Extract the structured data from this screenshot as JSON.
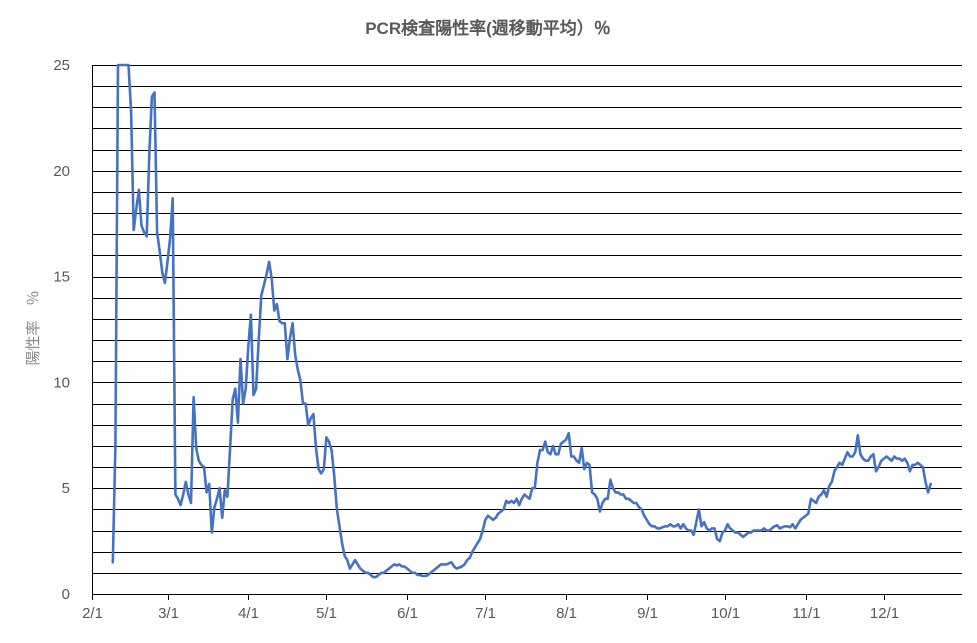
{
  "chart_data": {
    "type": "line",
    "title": "PCR検査陽性率(週移動平均）％",
    "ylabel": "陽性率　％",
    "xlabel": "",
    "ylim": [
      0,
      25
    ],
    "yticks": [
      0,
      5,
      10,
      15,
      20,
      25
    ],
    "ytick_labels": [
      "0",
      "5",
      "10",
      "15",
      "20",
      "25"
    ],
    "y_gridlines_every": 1,
    "grid": true,
    "legend": "none",
    "xlim": [
      "2/1",
      "12/31"
    ],
    "xtick_labels": [
      {
        "label": "2/1",
        "day": 0
      },
      {
        "label": "3/1",
        "day": 29
      },
      {
        "label": "4/1",
        "day": 60
      },
      {
        "label": "5/1",
        "day": 90
      },
      {
        "label": "6/1",
        "day": 121
      },
      {
        "label": "7/1",
        "day": 151
      },
      {
        "label": "8/1",
        "day": 182
      },
      {
        "label": "9/1",
        "day": 213
      },
      {
        "label": "10/1",
        "day": 243
      },
      {
        "label": "11/1",
        "day": 274
      },
      {
        "label": "12/1",
        "day": 304
      }
    ],
    "x_range_days": [
      0,
      334
    ],
    "series": [
      {
        "color": "#4472C4",
        "points": [
          [
            8,
            1.5
          ],
          [
            9,
            7
          ],
          [
            10,
            25
          ],
          [
            11,
            25
          ],
          [
            12,
            25
          ],
          [
            13,
            25
          ],
          [
            14,
            25
          ],
          [
            15,
            22.8
          ],
          [
            16,
            17.2
          ],
          [
            17,
            18.2
          ],
          [
            18,
            19.1
          ],
          [
            19,
            17.4
          ],
          [
            20,
            17.1
          ],
          [
            21,
            16.9
          ],
          [
            22,
            20.8
          ],
          [
            23,
            23.5
          ],
          [
            24,
            23.7
          ],
          [
            25,
            17.1
          ],
          [
            26,
            16.2
          ],
          [
            27,
            15.2
          ],
          [
            28,
            14.7
          ],
          [
            29,
            15.7
          ],
          [
            30,
            16.8
          ],
          [
            31,
            18.7
          ],
          [
            32,
            4.7
          ],
          [
            33,
            4.5
          ],
          [
            34,
            4.2
          ],
          [
            35,
            4.7
          ],
          [
            36,
            5.3
          ],
          [
            37,
            4.7
          ],
          [
            38,
            4.3
          ],
          [
            39,
            9.3
          ],
          [
            40,
            6.9
          ],
          [
            41,
            6.3
          ],
          [
            42,
            6.1
          ],
          [
            43,
            6.0
          ],
          [
            44,
            4.8
          ],
          [
            45,
            5.2
          ],
          [
            46,
            2.9
          ],
          [
            47,
            4.1
          ],
          [
            48,
            4.5
          ],
          [
            49,
            5.0
          ],
          [
            50,
            3.6
          ],
          [
            51,
            4.9
          ],
          [
            52,
            4.6
          ],
          [
            53,
            6.9
          ],
          [
            54,
            9.2
          ],
          [
            55,
            9.7
          ],
          [
            56,
            8.1
          ],
          [
            57,
            11.1
          ],
          [
            58,
            9.0
          ],
          [
            59,
            9.7
          ],
          [
            60,
            11.7
          ],
          [
            61,
            13.2
          ],
          [
            62,
            9.4
          ],
          [
            63,
            9.7
          ],
          [
            64,
            12.0
          ],
          [
            65,
            14.1
          ],
          [
            66,
            14.6
          ],
          [
            67,
            15.1
          ],
          [
            68,
            15.7
          ],
          [
            69,
            14.9
          ],
          [
            70,
            13.4
          ],
          [
            71,
            13.7
          ],
          [
            72,
            12.9
          ],
          [
            73,
            12.8
          ],
          [
            74,
            12.8
          ],
          [
            75,
            11.1
          ],
          [
            76,
            12.1
          ],
          [
            77,
            12.8
          ],
          [
            78,
            11.3
          ],
          [
            79,
            10.6
          ],
          [
            80,
            10.1
          ],
          [
            81,
            9.0
          ],
          [
            82,
            9.0
          ],
          [
            83,
            8.0
          ],
          [
            84,
            8.3
          ],
          [
            85,
            8.5
          ],
          [
            86,
            6.9
          ],
          [
            87,
            5.9
          ],
          [
            88,
            5.7
          ],
          [
            89,
            5.9
          ],
          [
            90,
            7.4
          ],
          [
            91,
            7.2
          ],
          [
            92,
            6.8
          ],
          [
            93,
            5.6
          ],
          [
            94,
            4.0
          ],
          [
            95,
            3.2
          ],
          [
            96,
            2.4
          ],
          [
            97,
            1.8
          ],
          [
            98,
            1.6
          ],
          [
            99,
            1.2
          ],
          [
            100,
            1.4
          ],
          [
            101,
            1.6
          ],
          [
            102,
            1.4
          ],
          [
            103,
            1.2
          ],
          [
            104,
            1.1
          ],
          [
            105,
            1.0
          ],
          [
            106,
            1.0
          ],
          [
            107,
            0.9
          ],
          [
            108,
            0.8
          ],
          [
            109,
            0.8
          ],
          [
            110,
            0.9
          ],
          [
            111,
            1.0
          ],
          [
            112,
            1.0
          ],
          [
            113,
            1.1
          ],
          [
            114,
            1.2
          ],
          [
            115,
            1.3
          ],
          [
            116,
            1.4
          ],
          [
            117,
            1.35
          ],
          [
            118,
            1.4
          ],
          [
            119,
            1.3
          ],
          [
            120,
            1.3
          ],
          [
            121,
            1.2
          ],
          [
            122,
            1.1
          ],
          [
            123,
            1.0
          ],
          [
            124,
            1.0
          ],
          [
            125,
            0.9
          ],
          [
            126,
            0.9
          ],
          [
            127,
            0.85
          ],
          [
            128,
            0.85
          ],
          [
            129,
            0.9
          ],
          [
            130,
            1.0
          ],
          [
            131,
            1.1
          ],
          [
            132,
            1.2
          ],
          [
            133,
            1.3
          ],
          [
            134,
            1.4
          ],
          [
            135,
            1.4
          ],
          [
            136,
            1.4
          ],
          [
            137,
            1.45
          ],
          [
            138,
            1.5
          ],
          [
            139,
            1.3
          ],
          [
            140,
            1.2
          ],
          [
            141,
            1.25
          ],
          [
            142,
            1.3
          ],
          [
            143,
            1.4
          ],
          [
            144,
            1.6
          ],
          [
            145,
            1.7
          ],
          [
            146,
            2.0
          ],
          [
            147,
            2.2
          ],
          [
            148,
            2.4
          ],
          [
            149,
            2.6
          ],
          [
            150,
            3.0
          ],
          [
            151,
            3.5
          ],
          [
            152,
            3.7
          ],
          [
            153,
            3.6
          ],
          [
            154,
            3.5
          ],
          [
            155,
            3.6
          ],
          [
            156,
            3.8
          ],
          [
            157,
            3.9
          ],
          [
            158,
            4.0
          ],
          [
            159,
            4.4
          ],
          [
            160,
            4.3
          ],
          [
            161,
            4.4
          ],
          [
            162,
            4.3
          ],
          [
            163,
            4.5
          ],
          [
            164,
            4.2
          ],
          [
            165,
            4.5
          ],
          [
            166,
            4.7
          ],
          [
            167,
            4.6
          ],
          [
            168,
            4.5
          ],
          [
            169,
            5.0
          ],
          [
            170,
            5.0
          ],
          [
            171,
            6.2
          ],
          [
            172,
            6.8
          ],
          [
            173,
            6.8
          ],
          [
            174,
            7.2
          ],
          [
            175,
            6.7
          ],
          [
            176,
            6.6
          ],
          [
            177,
            7.0
          ],
          [
            178,
            6.6
          ],
          [
            179,
            6.6
          ],
          [
            180,
            7.1
          ],
          [
            181,
            7.2
          ],
          [
            182,
            7.3
          ],
          [
            183,
            7.6
          ],
          [
            184,
            6.5
          ],
          [
            185,
            6.5
          ],
          [
            186,
            6.3
          ],
          [
            187,
            6.2
          ],
          [
            188,
            6.9
          ],
          [
            189,
            5.9
          ],
          [
            190,
            6.2
          ],
          [
            191,
            6.1
          ],
          [
            192,
            4.8
          ],
          [
            193,
            4.7
          ],
          [
            194,
            4.5
          ],
          [
            195,
            3.9
          ],
          [
            196,
            4.3
          ],
          [
            197,
            4.5
          ],
          [
            198,
            4.5
          ],
          [
            199,
            5.4
          ],
          [
            200,
            5.0
          ],
          [
            201,
            4.8
          ],
          [
            202,
            4.8
          ],
          [
            203,
            4.7
          ],
          [
            204,
            4.7
          ],
          [
            205,
            4.5
          ],
          [
            206,
            4.5
          ],
          [
            207,
            4.4
          ],
          [
            208,
            4.3
          ],
          [
            209,
            4.3
          ],
          [
            210,
            4.1
          ],
          [
            211,
            4.0
          ],
          [
            212,
            3.7
          ],
          [
            213,
            3.5
          ],
          [
            214,
            3.3
          ],
          [
            215,
            3.2
          ],
          [
            216,
            3.2
          ],
          [
            217,
            3.1
          ],
          [
            218,
            3.1
          ],
          [
            219,
            3.15
          ],
          [
            220,
            3.2
          ],
          [
            221,
            3.2
          ],
          [
            222,
            3.3
          ],
          [
            223,
            3.2
          ],
          [
            224,
            3.2
          ],
          [
            225,
            3.3
          ],
          [
            226,
            3.1
          ],
          [
            227,
            3.3
          ],
          [
            228,
            3.1
          ],
          [
            229,
            3.0
          ],
          [
            230,
            3.0
          ],
          [
            231,
            2.8
          ],
          [
            232,
            3.4
          ],
          [
            233,
            4.0
          ],
          [
            234,
            3.2
          ],
          [
            235,
            3.4
          ],
          [
            236,
            3.1
          ],
          [
            237,
            3.0
          ],
          [
            238,
            3.1
          ],
          [
            239,
            3.1
          ],
          [
            240,
            2.6
          ],
          [
            241,
            2.5
          ],
          [
            242,
            2.9
          ],
          [
            243,
            3.0
          ],
          [
            244,
            3.3
          ],
          [
            245,
            3.1
          ],
          [
            246,
            3.0
          ],
          [
            247,
            2.9
          ],
          [
            248,
            2.9
          ],
          [
            249,
            2.8
          ],
          [
            250,
            2.7
          ],
          [
            251,
            2.8
          ],
          [
            252,
            2.9
          ],
          [
            253,
            2.9
          ],
          [
            254,
            3.0
          ],
          [
            255,
            3.0
          ],
          [
            256,
            3.0
          ],
          [
            257,
            3.0
          ],
          [
            258,
            3.1
          ],
          [
            259,
            3.0
          ],
          [
            260,
            3.0
          ],
          [
            261,
            3.1
          ],
          [
            262,
            3.2
          ],
          [
            263,
            3.25
          ],
          [
            264,
            3.1
          ],
          [
            265,
            3.15
          ],
          [
            266,
            3.2
          ],
          [
            267,
            3.2
          ],
          [
            268,
            3.15
          ],
          [
            269,
            3.3
          ],
          [
            270,
            3.1
          ],
          [
            271,
            3.3
          ],
          [
            272,
            3.5
          ],
          [
            273,
            3.6
          ],
          [
            274,
            3.7
          ],
          [
            275,
            3.8
          ],
          [
            276,
            4.5
          ],
          [
            277,
            4.4
          ],
          [
            278,
            4.3
          ],
          [
            279,
            4.6
          ],
          [
            280,
            4.7
          ],
          [
            281,
            4.9
          ],
          [
            282,
            4.6
          ],
          [
            283,
            5.1
          ],
          [
            284,
            5.3
          ],
          [
            285,
            5.8
          ],
          [
            286,
            6.0
          ],
          [
            287,
            6.2
          ],
          [
            288,
            6.1
          ],
          [
            289,
            6.4
          ],
          [
            290,
            6.7
          ],
          [
            291,
            6.5
          ],
          [
            292,
            6.5
          ],
          [
            293,
            6.7
          ],
          [
            294,
            7.5
          ],
          [
            295,
            6.6
          ],
          [
            296,
            6.4
          ],
          [
            297,
            6.3
          ],
          [
            298,
            6.3
          ],
          [
            299,
            6.5
          ],
          [
            300,
            6.6
          ],
          [
            301,
            5.8
          ],
          [
            302,
            6.0
          ],
          [
            303,
            6.3
          ],
          [
            304,
            6.4
          ],
          [
            305,
            6.5
          ],
          [
            306,
            6.4
          ],
          [
            307,
            6.3
          ],
          [
            308,
            6.5
          ],
          [
            309,
            6.4
          ],
          [
            310,
            6.4
          ],
          [
            311,
            6.3
          ],
          [
            312,
            6.4
          ],
          [
            313,
            6.2
          ],
          [
            314,
            5.8
          ],
          [
            315,
            6.1
          ],
          [
            316,
            6.1
          ],
          [
            317,
            6.2
          ],
          [
            318,
            6.1
          ],
          [
            319,
            6.0
          ],
          [
            320,
            5.3
          ],
          [
            321,
            4.8
          ],
          [
            322,
            5.2
          ]
        ]
      }
    ]
  }
}
